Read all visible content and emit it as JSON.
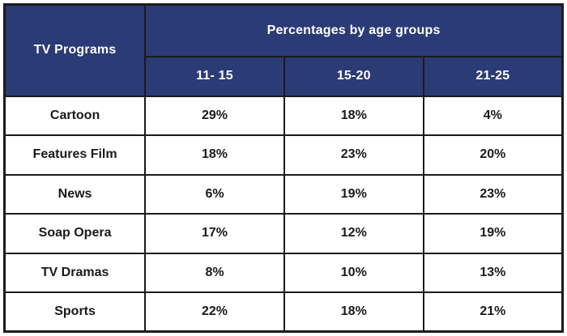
{
  "table": {
    "corner_header": "TV Programs",
    "group_header": "Percentages by age groups",
    "age_groups": [
      "11- 15",
      "15-20",
      "21-25"
    ],
    "rows": [
      {
        "program": "Cartoon",
        "values": [
          "29%",
          "18%",
          "4%"
        ]
      },
      {
        "program": "Features Film",
        "values": [
          "18%",
          "23%",
          "20%"
        ]
      },
      {
        "program": "News",
        "values": [
          "6%",
          "19%",
          "23%"
        ]
      },
      {
        "program": "Soap Opera",
        "values": [
          "17%",
          "12%",
          "19%"
        ]
      },
      {
        "program": "TV Dramas",
        "values": [
          "8%",
          "10%",
          "13%"
        ]
      },
      {
        "program": "Sports",
        "values": [
          "22%",
          "18%",
          "21%"
        ]
      }
    ]
  },
  "colors": {
    "header_background": "#2a3b76",
    "header_text": "#ffffff",
    "border": "#1b1b1b",
    "cell_text": "#1a1a1a",
    "cell_background": "#ffffff"
  },
  "chart_data": {
    "type": "table",
    "title": "Percentages by age groups",
    "row_header": "TV Programs",
    "columns": [
      "11- 15",
      "15-20",
      "21-25"
    ],
    "rows": [
      {
        "label": "Cartoon",
        "values": [
          29,
          18,
          4
        ]
      },
      {
        "label": "Features Film",
        "values": [
          18,
          23,
          20
        ]
      },
      {
        "label": "News",
        "values": [
          6,
          19,
          23
        ]
      },
      {
        "label": "Soap Opera",
        "values": [
          17,
          12,
          19
        ]
      },
      {
        "label": "TV Dramas",
        "values": [
          8,
          10,
          13
        ]
      },
      {
        "label": "Sports",
        "values": [
          22,
          18,
          21
        ]
      }
    ],
    "unit": "%",
    "legend_position": "none",
    "grid": true
  }
}
